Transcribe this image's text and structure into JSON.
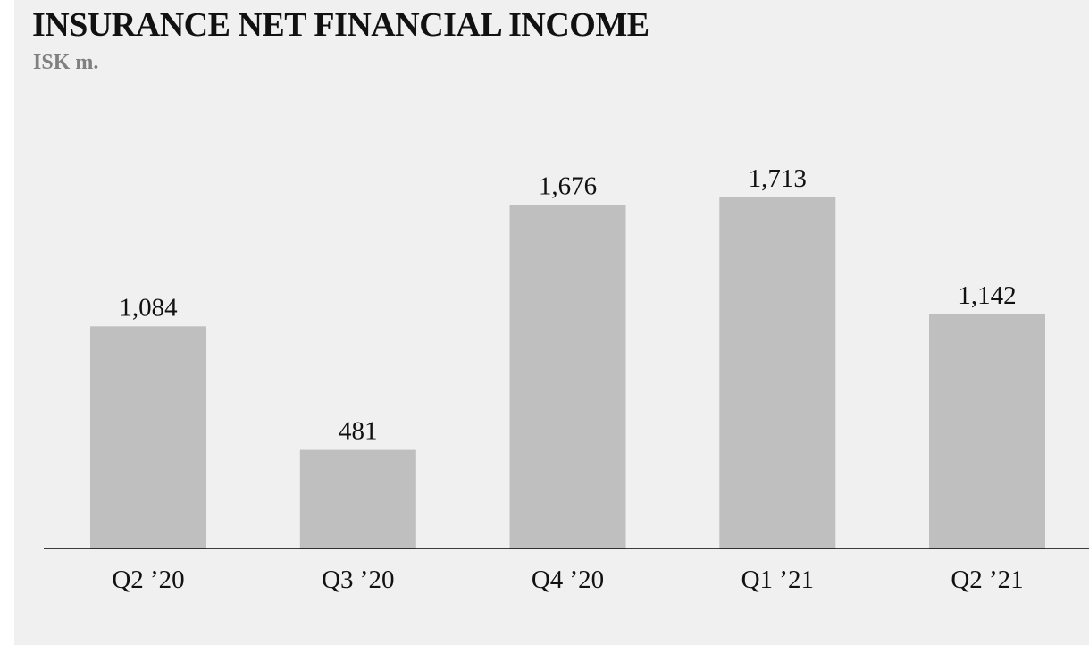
{
  "chart_data": {
    "type": "bar",
    "title": "INSURANCE NET FINANCIAL INCOME",
    "subtitle": "ISK m.",
    "xlabel": "",
    "ylabel": "",
    "categories": [
      "Q2 ’20",
      "Q3 ’20",
      "Q4 ’20",
      "Q1 ’21",
      "Q2 ’21"
    ],
    "values": [
      1084,
      481,
      1676,
      1713,
      1142
    ],
    "value_labels": [
      "1,084",
      "481",
      "1,676",
      "1,713",
      "1,142"
    ],
    "ylim": [
      0,
      1713
    ],
    "grid": false,
    "legend": "none",
    "colors": {
      "bar": "#bfbfbf",
      "background": "#f0f0f0",
      "axis": "#000000",
      "title": "#111111",
      "subtitle": "#808080"
    }
  }
}
